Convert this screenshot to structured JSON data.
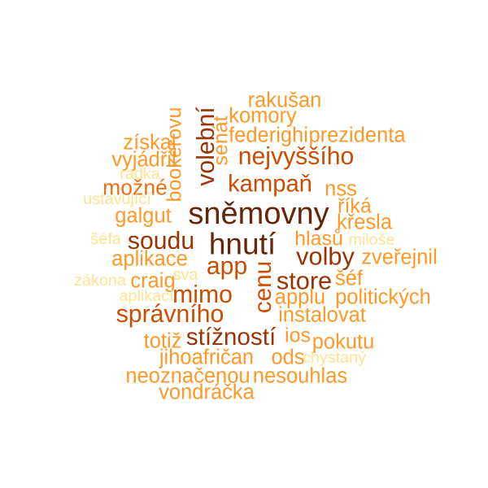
{
  "palette": {
    "darkest": "#662506",
    "dark": "#993404",
    "mid_dark": "#cc4c02",
    "mid": "#ec7014",
    "light": "#fe9929",
    "lighter": "#fec44f",
    "lightest": "#fee391"
  },
  "words": [
    {
      "text": "sněmovny",
      "weight": 1.0,
      "color": "darkest",
      "orientation": "horizontal"
    },
    {
      "text": "hnutí",
      "weight": 0.96,
      "color": "darkest",
      "orientation": "horizontal"
    },
    {
      "text": "nejvyššího",
      "weight": 0.7,
      "color": "mid_dark",
      "orientation": "horizontal"
    },
    {
      "text": "kampaň",
      "weight": 0.66,
      "color": "mid_dark",
      "orientation": "horizontal"
    },
    {
      "text": "volební",
      "weight": 0.7,
      "color": "dark",
      "orientation": "vertical"
    },
    {
      "text": "volby",
      "weight": 0.72,
      "color": "dark",
      "orientation": "horizontal"
    },
    {
      "text": "store",
      "weight": 0.72,
      "color": "dark",
      "orientation": "horizontal"
    },
    {
      "text": "app",
      "weight": 0.7,
      "color": "mid_dark",
      "orientation": "horizontal"
    },
    {
      "text": "soudu",
      "weight": 0.7,
      "color": "dark",
      "orientation": "horizontal"
    },
    {
      "text": "mimo",
      "weight": 0.7,
      "color": "mid_dark",
      "orientation": "horizontal"
    },
    {
      "text": "cenu",
      "weight": 0.68,
      "color": "mid_dark",
      "orientation": "vertical"
    },
    {
      "text": "správního",
      "weight": 0.7,
      "color": "mid_dark",
      "orientation": "horizontal"
    },
    {
      "text": "stížností",
      "weight": 0.68,
      "color": "dark",
      "orientation": "horizontal"
    },
    {
      "text": "rakušan",
      "weight": 0.52,
      "color": "light",
      "orientation": "horizontal"
    },
    {
      "text": "komory",
      "weight": 0.52,
      "color": "light",
      "orientation": "horizontal"
    },
    {
      "text": "federighi",
      "weight": 0.52,
      "color": "light",
      "orientation": "horizontal"
    },
    {
      "text": "prezidenta",
      "weight": 0.52,
      "color": "light",
      "orientation": "horizontal"
    },
    {
      "text": "senát",
      "weight": 0.5,
      "color": "light",
      "orientation": "vertical"
    },
    {
      "text": "získal",
      "weight": 0.52,
      "color": "light",
      "orientation": "horizontal"
    },
    {
      "text": "vyjádřil",
      "weight": 0.52,
      "color": "light",
      "orientation": "horizontal"
    },
    {
      "text": "bookerovu",
      "weight": 0.5,
      "color": "light",
      "orientation": "vertical"
    },
    {
      "text": "možné",
      "weight": 0.56,
      "color": "mid",
      "orientation": "horizontal"
    },
    {
      "text": "nss",
      "weight": 0.52,
      "color": "light",
      "orientation": "horizontal"
    },
    {
      "text": "říká",
      "weight": 0.5,
      "color": "light",
      "orientation": "horizontal"
    },
    {
      "text": "křesla",
      "weight": 0.52,
      "color": "light",
      "orientation": "horizontal"
    },
    {
      "text": "galgut",
      "weight": 0.52,
      "color": "light",
      "orientation": "horizontal"
    },
    {
      "text": "hlasů",
      "weight": 0.5,
      "color": "light",
      "orientation": "horizontal"
    },
    {
      "text": "zveřejnil",
      "weight": 0.52,
      "color": "light",
      "orientation": "horizontal"
    },
    {
      "text": "aplikace",
      "weight": 0.52,
      "color": "light",
      "orientation": "horizontal"
    },
    {
      "text": "šéf",
      "weight": 0.52,
      "color": "light",
      "orientation": "horizontal"
    },
    {
      "text": "craig",
      "weight": 0.52,
      "color": "light",
      "orientation": "horizontal"
    },
    {
      "text": "applu",
      "weight": 0.52,
      "color": "light",
      "orientation": "horizontal"
    },
    {
      "text": "politických",
      "weight": 0.52,
      "color": "light",
      "orientation": "horizontal"
    },
    {
      "text": "instalovat",
      "weight": 0.52,
      "color": "light",
      "orientation": "horizontal"
    },
    {
      "text": "totiž",
      "weight": 0.52,
      "color": "light",
      "orientation": "horizontal"
    },
    {
      "text": "ios",
      "weight": 0.5,
      "color": "light",
      "orientation": "horizontal"
    },
    {
      "text": "pokutu",
      "weight": 0.52,
      "color": "light",
      "orientation": "horizontal"
    },
    {
      "text": "jihoafričan",
      "weight": 0.52,
      "color": "light",
      "orientation": "horizontal"
    },
    {
      "text": "ods",
      "weight": 0.52,
      "color": "light",
      "orientation": "horizontal"
    },
    {
      "text": "neoznačenou",
      "weight": 0.52,
      "color": "light",
      "orientation": "horizontal"
    },
    {
      "text": "nesouhlas",
      "weight": 0.52,
      "color": "light",
      "orientation": "horizontal"
    },
    {
      "text": "vondráčka",
      "weight": 0.52,
      "color": "light",
      "orientation": "horizontal"
    },
    {
      "text": "radka",
      "weight": 0.3,
      "color": "lightest",
      "orientation": "horizontal"
    },
    {
      "text": "ustavující",
      "weight": 0.3,
      "color": "lightest",
      "orientation": "horizontal"
    },
    {
      "text": "šéfa",
      "weight": 0.3,
      "color": "lightest",
      "orientation": "horizontal"
    },
    {
      "text": "miloše",
      "weight": 0.3,
      "color": "lightest",
      "orientation": "horizontal"
    },
    {
      "text": "zákona",
      "weight": 0.3,
      "color": "lightest",
      "orientation": "horizontal"
    },
    {
      "text": "sva",
      "weight": 0.3,
      "color": "lightest",
      "orientation": "horizontal"
    },
    {
      "text": "aplikací",
      "weight": 0.3,
      "color": "lightest",
      "orientation": "horizontal"
    },
    {
      "text": "chystaný",
      "weight": 0.3,
      "color": "lightest",
      "orientation": "horizontal"
    }
  ]
}
